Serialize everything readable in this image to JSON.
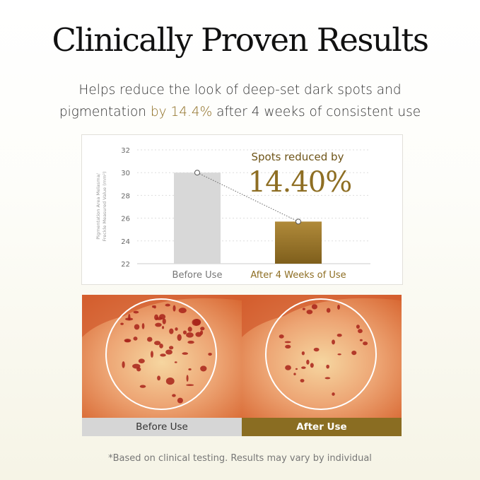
{
  "header": {
    "title": "Clinically Proven Results",
    "subtitle_line1": "Helps reduce the look of deep-set dark spots and",
    "subtitle_line2_pre": "pigmentation ",
    "subtitle_highlight": "by 14.4%",
    "subtitle_line2_post": " after 4 weeks of consistent use"
  },
  "chart_data": {
    "type": "bar",
    "categories": [
      "Before Use",
      "After 4 Weeks of Use"
    ],
    "values": [
      30.0,
      25.7
    ],
    "ylabel_line1": "Pigmentation Area Melasma/",
    "ylabel_line2": "Freckle Measured Value (mm²)",
    "ylim": [
      22,
      32
    ],
    "yticks": [
      "22",
      "24",
      "26",
      "28",
      "30",
      "32"
    ],
    "grid": true,
    "annotation_line1": "Spots reduced by",
    "annotation_value": "14.40%",
    "colors": {
      "before": "#d8d8d8",
      "after": "#9a7428",
      "accent": "#8e6e23"
    }
  },
  "photos": {
    "before_label": "Before Use",
    "after_label": "After Use",
    "before_label_bg": "#d6d6d6",
    "after_label_bg": "#8a6d22"
  },
  "footer": {
    "disclaimer": "*Based on clinical testing. Results may vary by individual"
  }
}
